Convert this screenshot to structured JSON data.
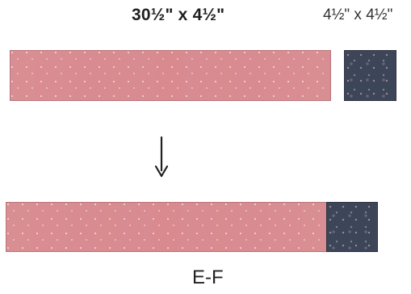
{
  "labels": {
    "large_strip": "30½\" x 4½\"",
    "small_square": "4½\" x 4½\""
  },
  "caption": "E-F",
  "colors": {
    "strip": "#d7888d",
    "square": "#3d4558",
    "text": "#1f1f1f"
  },
  "icons": {
    "arrow": "down-arrow-icon"
  }
}
